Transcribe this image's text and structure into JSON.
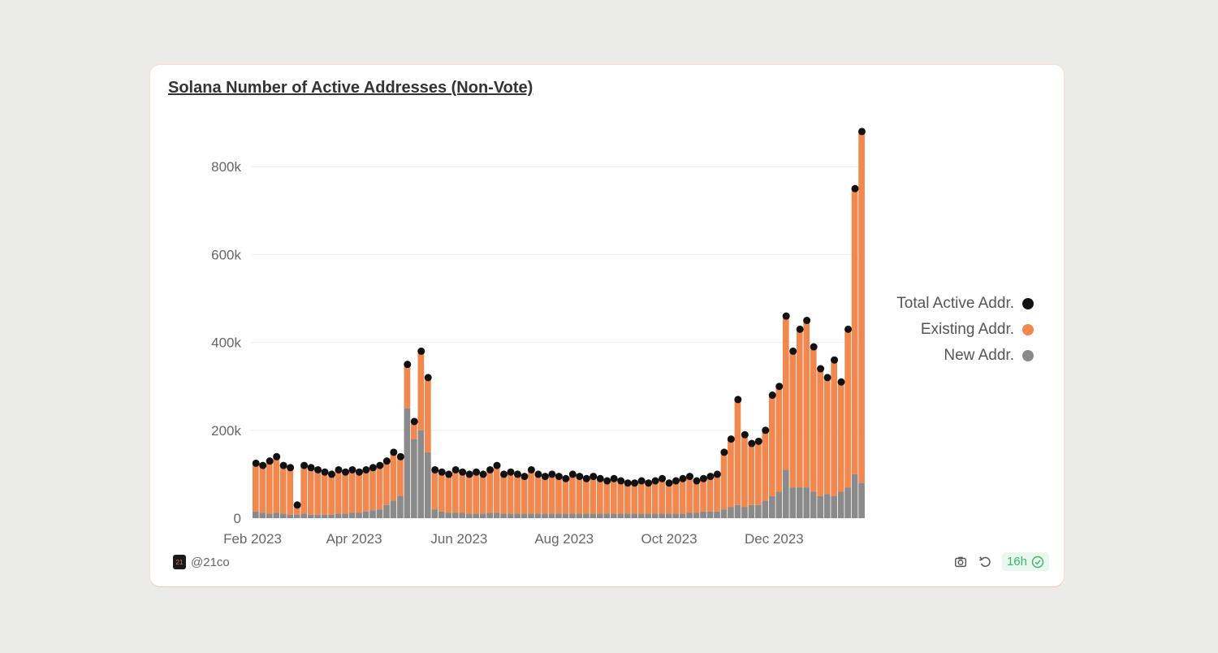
{
  "title": "Solana Number of Active Addresses (Non-Vote)",
  "footer": {
    "author": "@21co",
    "logo_text": "21",
    "freshness": "16h"
  },
  "colors": {
    "total": "#111111",
    "existing": "#f0884f",
    "new": "#8a8a8a"
  },
  "chart_data": {
    "type": "bar",
    "title": "Solana Number of Active Addresses (Non-Vote)",
    "xlabel": "",
    "ylabel": "",
    "x_start": "2023-02-01",
    "x_step_days": 4,
    "ylim": [
      0,
      900000
    ],
    "yticks": [
      0,
      200000,
      400000,
      600000,
      800000
    ],
    "ytick_labels": [
      "0",
      "200k",
      "400k",
      "600k",
      "800k"
    ],
    "xtick_labels": [
      "Feb 2023",
      "Apr 2023",
      "Jun 2023",
      "Aug 2023",
      "Oct 2023",
      "Dec 2023"
    ],
    "xtick_days": [
      0,
      59,
      120,
      181,
      242,
      303
    ],
    "grid": true,
    "legend_position": "right",
    "series": [
      {
        "name": "Total Active Addr.",
        "style": "dots",
        "values_k": [
          125,
          120,
          130,
          140,
          120,
          115,
          30,
          120,
          115,
          110,
          105,
          100,
          110,
          105,
          110,
          105,
          110,
          115,
          120,
          130,
          150,
          140,
          350,
          220,
          380,
          320,
          110,
          105,
          100,
          110,
          105,
          100,
          105,
          100,
          110,
          120,
          100,
          105,
          100,
          95,
          110,
          100,
          95,
          100,
          95,
          90,
          100,
          95,
          90,
          95,
          90,
          85,
          90,
          85,
          80,
          80,
          85,
          80,
          85,
          90,
          80,
          85,
          90,
          95,
          85,
          90,
          95,
          100,
          150,
          180,
          270,
          190,
          170,
          175,
          200,
          280,
          300,
          460,
          380,
          430,
          450,
          390,
          340,
          320,
          360,
          310,
          430,
          750,
          880
        ]
      },
      {
        "name": "Existing Addr.",
        "style": "stacked-bar",
        "note": "total minus new"
      },
      {
        "name": "New Addr.",
        "style": "stacked-bar",
        "values_k": [
          15,
          12,
          10,
          12,
          10,
          8,
          8,
          10,
          8,
          8,
          8,
          8,
          10,
          10,
          12,
          12,
          15,
          18,
          20,
          30,
          40,
          50,
          250,
          180,
          200,
          150,
          20,
          15,
          12,
          12,
          12,
          10,
          10,
          10,
          12,
          12,
          10,
          10,
          10,
          10,
          10,
          10,
          10,
          10,
          10,
          10,
          10,
          10,
          10,
          10,
          10,
          10,
          10,
          10,
          10,
          10,
          10,
          10,
          10,
          10,
          10,
          10,
          10,
          12,
          12,
          15,
          15,
          15,
          20,
          25,
          30,
          25,
          30,
          30,
          40,
          50,
          60,
          110,
          70,
          70,
          70,
          60,
          50,
          55,
          50,
          60,
          70,
          100,
          80
        ]
      }
    ]
  }
}
